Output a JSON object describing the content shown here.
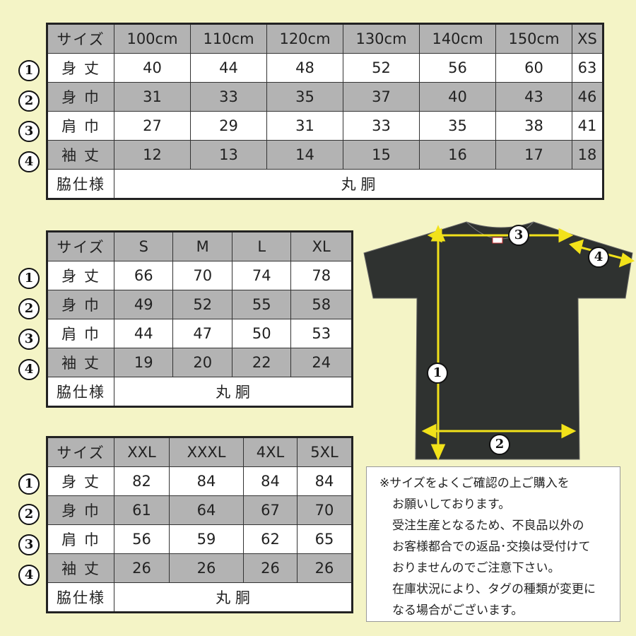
{
  "tables": [
    {
      "header": [
        "サイズ",
        "100cm",
        "110cm",
        "120cm",
        "130cm",
        "140cm",
        "150cm",
        "XS"
      ],
      "rows": [
        {
          "num": "1",
          "label": "身 丈",
          "values": [
            "40",
            "44",
            "48",
            "52",
            "56",
            "60",
            "63"
          ]
        },
        {
          "num": "2",
          "label": "身 巾",
          "values": [
            "31",
            "33",
            "35",
            "37",
            "40",
            "43",
            "46"
          ]
        },
        {
          "num": "3",
          "label": "肩 巾",
          "values": [
            "27",
            "29",
            "31",
            "33",
            "35",
            "38",
            "41"
          ]
        },
        {
          "num": "4",
          "label": "袖 丈",
          "values": [
            "12",
            "13",
            "14",
            "15",
            "16",
            "17",
            "18"
          ]
        }
      ],
      "side_label": "脇仕様",
      "side_value": "丸 胴"
    },
    {
      "header": [
        "サイズ",
        "S",
        "M",
        "L",
        "XL"
      ],
      "rows": [
        {
          "num": "1",
          "label": "身 丈",
          "values": [
            "66",
            "70",
            "74",
            "78"
          ]
        },
        {
          "num": "2",
          "label": "身 巾",
          "values": [
            "49",
            "52",
            "55",
            "58"
          ]
        },
        {
          "num": "3",
          "label": "肩 巾",
          "values": [
            "44",
            "47",
            "50",
            "53"
          ]
        },
        {
          "num": "4",
          "label": "袖 丈",
          "values": [
            "19",
            "20",
            "22",
            "24"
          ]
        }
      ],
      "side_label": "脇仕様",
      "side_value": "丸 胴"
    },
    {
      "header": [
        "サイズ",
        "XXL",
        "XXXL",
        "4XL",
        "5XL"
      ],
      "rows": [
        {
          "num": "1",
          "label": "身 丈",
          "values": [
            "82",
            "84",
            "84",
            "84"
          ]
        },
        {
          "num": "2",
          "label": "身 巾",
          "values": [
            "61",
            "64",
            "67",
            "70"
          ]
        },
        {
          "num": "3",
          "label": "肩 巾",
          "values": [
            "56",
            "59",
            "62",
            "65"
          ]
        },
        {
          "num": "4",
          "label": "袖 丈",
          "values": [
            "26",
            "26",
            "26",
            "26"
          ]
        }
      ],
      "side_label": "脇仕様",
      "side_value": "丸 胴"
    }
  ],
  "diagram": {
    "markers": [
      "1",
      "2",
      "3",
      "4"
    ],
    "shirt_color": "#2f3230",
    "arrow_color": "#f2e21a"
  },
  "note": {
    "lines": [
      "※サイズをよくご確認の上ご購入を",
      "お願いしております。",
      "受注生産となるため、不良品以外の",
      "お客様都合での返品･交換は受付けて",
      "おりませんのでご注意下さい。",
      "在庫状況により、タグの種類が変更に",
      "なる場合がございます。"
    ]
  }
}
